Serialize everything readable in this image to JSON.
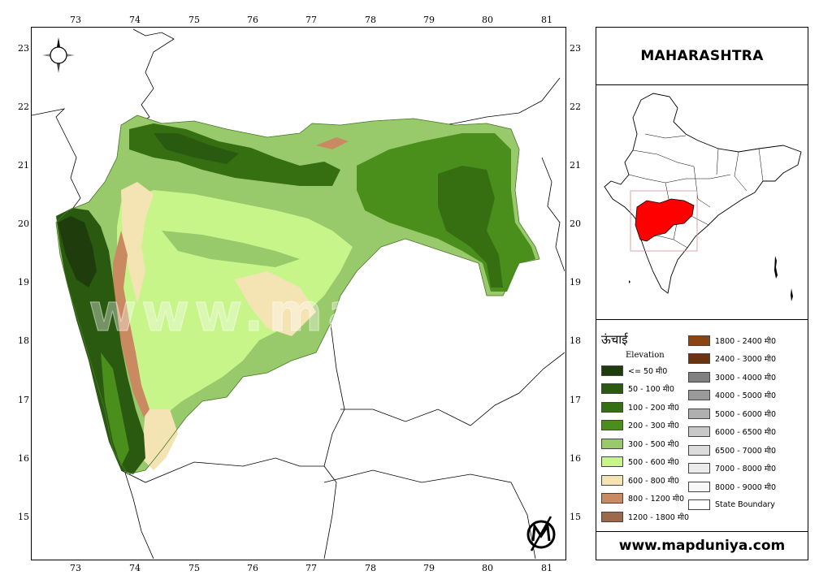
{
  "title": "MAHARASHTRA",
  "website": "www.mapduniya.com",
  "watermark": "www.mapduniya.com",
  "axes": {
    "x_ticks": [
      "73",
      "74",
      "75",
      "76",
      "77",
      "78",
      "79",
      "80",
      "81"
    ],
    "y_ticks": [
      "23",
      "22",
      "21",
      "20",
      "19",
      "18",
      "17",
      "16",
      "15"
    ]
  },
  "legend": {
    "title_hindi": "ऊंचाई",
    "title_english": "Elevation",
    "left_items": [
      {
        "label": "<= 50 मी0",
        "color": "#1f3d0c"
      },
      {
        "label": "50 - 100 मी0",
        "color": "#2a5a10"
      },
      {
        "label": "100 - 200 मी0",
        "color": "#356f12"
      },
      {
        "label": "200 - 300 मी0",
        "color": "#4a8f1c"
      },
      {
        "label": "300 - 500 मी0",
        "color": "#98c96a"
      },
      {
        "label": "500 - 600 मी0",
        "color": "#c8f58a"
      },
      {
        "label": "600 - 800 मी0",
        "color": "#f4e4b4"
      },
      {
        "label": "800 - 1200 मी0",
        "color": "#c98a62"
      },
      {
        "label": "1200 - 1800 मी0",
        "color": "#9c6a4a"
      }
    ],
    "right_items": [
      {
        "label": "1800 - 2400 मी0",
        "color": "#8b4513"
      },
      {
        "label": "2400 - 3000 मी0",
        "color": "#6b3410"
      },
      {
        "label": "3000 - 4000 मी0",
        "color": "#808080"
      },
      {
        "label": "4000 - 5000 मी0",
        "color": "#9a9a9a"
      },
      {
        "label": "5000 - 6000 मी0",
        "color": "#b0b0b0"
      },
      {
        "label": "6000 - 6500 मी0",
        "color": "#c8c8c8"
      },
      {
        "label": "6500 - 7000 मी0",
        "color": "#dcdcdc"
      },
      {
        "label": "7000 - 8000 मी0",
        "color": "#ececec"
      },
      {
        "label": "8000 - 9000 मी0",
        "color": "#f8f8f8"
      },
      {
        "label": "State Boundary",
        "color": "#ffffff"
      }
    ]
  },
  "inset": {
    "highlight_color": "#ff0000"
  },
  "icons": [
    "compass-rose-icon",
    "mapduniya-logo-icon"
  ]
}
